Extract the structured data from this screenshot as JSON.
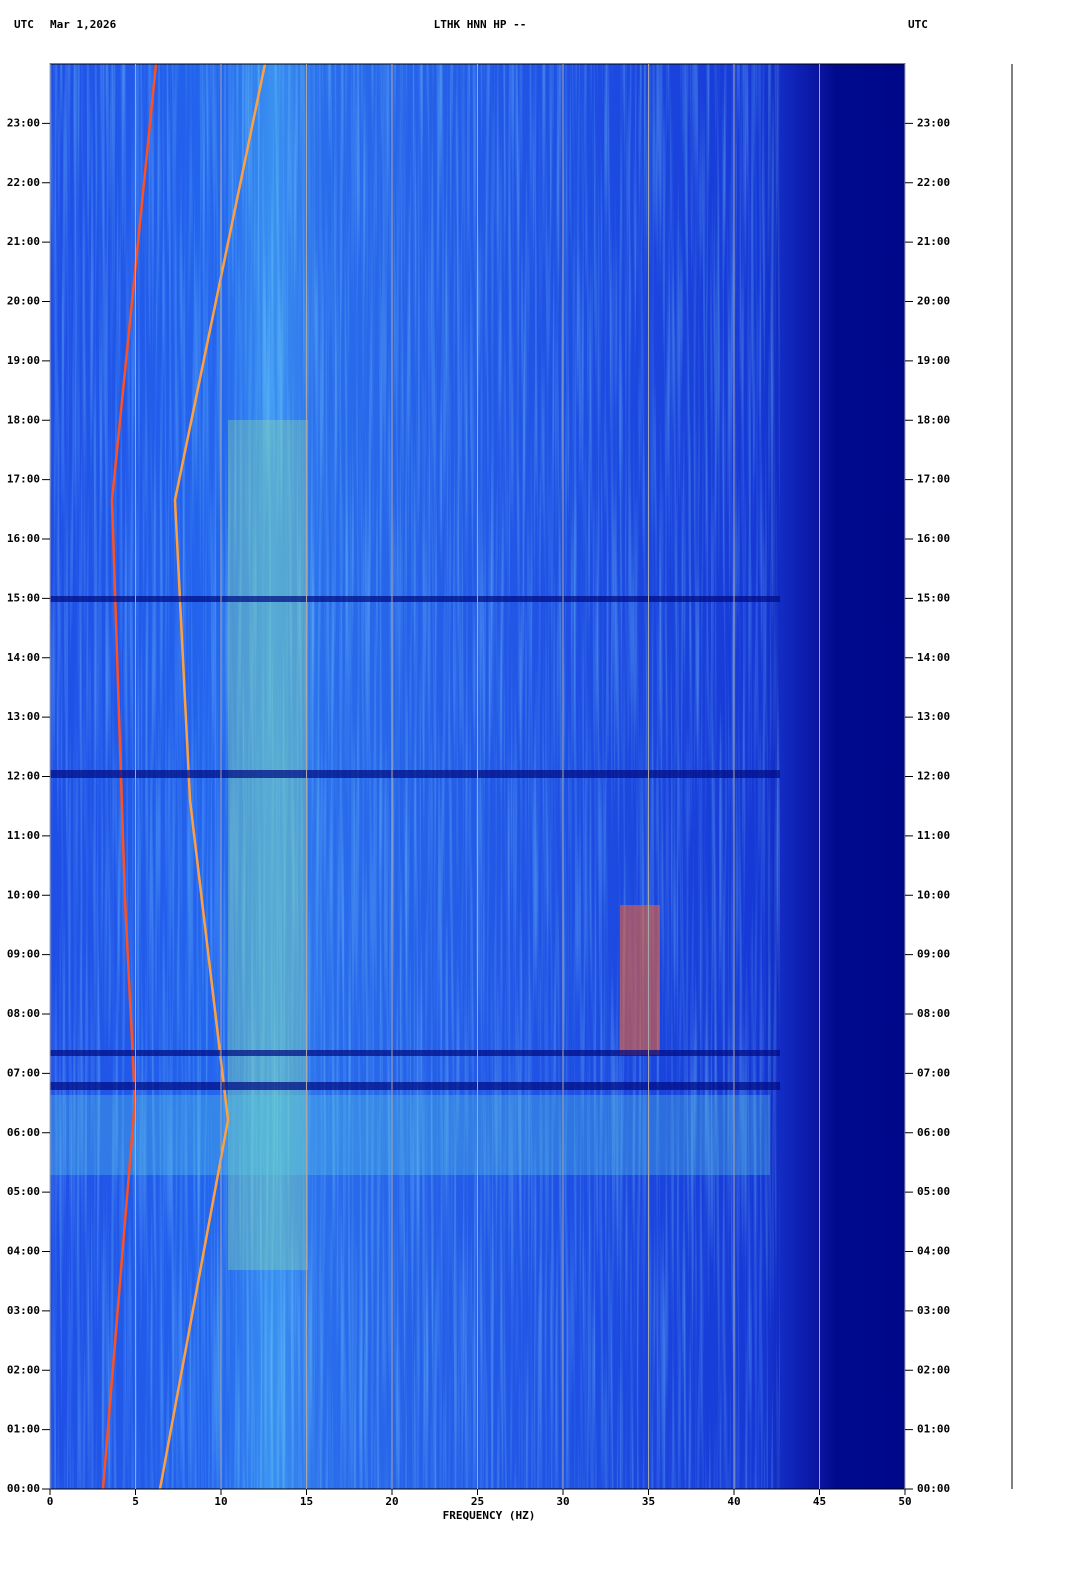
{
  "chart_data": {
    "type": "spectrogram",
    "title": "LTHK HNN HP --",
    "time_zone_left": "UTC",
    "date": "Mar 1,2026",
    "time_zone_right": "UTC",
    "x_label": "FREQUENCY (HZ)",
    "xlim": [
      0,
      50
    ],
    "xticks": [
      0,
      5,
      10,
      15,
      20,
      25,
      30,
      35,
      40,
      45,
      50
    ],
    "ylim": [
      0,
      24
    ],
    "yticks": [
      {
        "value": 0,
        "label": "00:00"
      },
      {
        "value": 1,
        "label": "01:00"
      },
      {
        "value": 2,
        "label": "02:00"
      },
      {
        "value": 3,
        "label": "03:00"
      },
      {
        "value": 4,
        "label": "04:00"
      },
      {
        "value": 5,
        "label": "05:00"
      },
      {
        "value": 6,
        "label": "06:00"
      },
      {
        "value": 7,
        "label": "07:00"
      },
      {
        "value": 8,
        "label": "08:00"
      },
      {
        "value": 9,
        "label": "09:00"
      },
      {
        "value": 10,
        "label": "10:00"
      },
      {
        "value": 11,
        "label": "11:00"
      },
      {
        "value": 12,
        "label": "12:00"
      },
      {
        "value": 13,
        "label": "13:00"
      },
      {
        "value": 14,
        "label": "14:00"
      },
      {
        "value": 15,
        "label": "15:00"
      },
      {
        "value": 16,
        "label": "16:00"
      },
      {
        "value": 17,
        "label": "17:00"
      },
      {
        "value": 18,
        "label": "18:00"
      },
      {
        "value": 19,
        "label": "19:00"
      },
      {
        "value": 20,
        "label": "20:00"
      },
      {
        "value": 21,
        "label": "21:00"
      },
      {
        "value": 22,
        "label": "22:00"
      },
      {
        "value": 23,
        "label": "23:00"
      }
    ],
    "grid": true
  }
}
